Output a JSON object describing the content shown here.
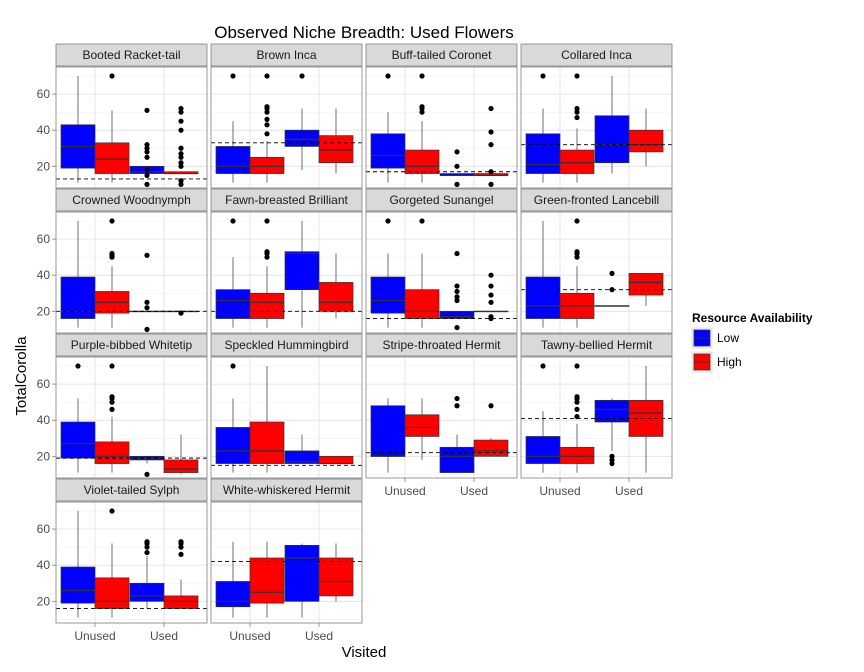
{
  "chart_data": {
    "type": "boxplot-facets",
    "title": "Observed Niche Breadth: Used Flowers",
    "xlabel": "Visited",
    "ylabel": "TotalCorolla",
    "categories": [
      "Unused",
      "Used"
    ],
    "ylim": [
      8,
      75
    ],
    "yticks": [
      20,
      40,
      60
    ],
    "grid": true,
    "legend": {
      "title": "Resource Availability",
      "position": "right",
      "entries": [
        {
          "name": "Low",
          "color": "#0000FF"
        },
        {
          "name": "High",
          "color": "#FF0000"
        }
      ]
    },
    "facets": [
      {
        "name": "Booted Racket-tail",
        "hline": 13,
        "boxes": [
          {
            "x": "Unused",
            "group": "Low",
            "min": 11,
            "q1": 19,
            "median": 31,
            "q3": 43,
            "max": 70,
            "outliers": []
          },
          {
            "x": "Unused",
            "group": "High",
            "min": 11,
            "q1": 16,
            "median": 24,
            "q3": 33,
            "max": 51,
            "outliers": [
              70
            ]
          },
          {
            "x": "Used",
            "group": "Low",
            "min": 16,
            "q1": 16,
            "median": 17,
            "q3": 20,
            "max": 20,
            "outliers": [
              10,
              15,
              18,
              25,
              28,
              30,
              32,
              51
            ]
          },
          {
            "x": "Used",
            "group": "High",
            "min": 16,
            "q1": 16,
            "median": 16,
            "q3": 17,
            "max": 17,
            "outliers": [
              10,
              12,
              20,
              22,
              25,
              27,
              30,
              40,
              45,
              50,
              52
            ]
          }
        ]
      },
      {
        "name": "Brown Inca",
        "hline": 33,
        "boxes": [
          {
            "x": "Unused",
            "group": "Low",
            "min": 11,
            "q1": 16,
            "median": 20,
            "q3": 31,
            "max": 45,
            "outliers": [
              70
            ]
          },
          {
            "x": "Unused",
            "group": "High",
            "min": 11,
            "q1": 16,
            "median": 20,
            "q3": 25,
            "max": 34,
            "outliers": [
              38,
              43,
              46,
              50,
              52,
              53,
              70
            ]
          },
          {
            "x": "Used",
            "group": "Low",
            "min": 18,
            "q1": 31,
            "median": 35,
            "q3": 40,
            "max": 52,
            "outliers": [
              70
            ]
          },
          {
            "x": "Used",
            "group": "High",
            "min": 16,
            "q1": 22,
            "median": 29,
            "q3": 37,
            "max": 52,
            "outliers": []
          }
        ]
      },
      {
        "name": "Buff-tailed Coronet",
        "hline": 17,
        "boxes": [
          {
            "x": "Unused",
            "group": "Low",
            "min": 11,
            "q1": 19,
            "median": 26,
            "q3": 38,
            "max": 50,
            "outliers": [
              70
            ]
          },
          {
            "x": "Unused",
            "group": "High",
            "min": 11,
            "q1": 16,
            "median": 20,
            "q3": 29,
            "max": 45,
            "outliers": [
              50,
              52,
              53,
              70
            ]
          },
          {
            "x": "Used",
            "group": "Low",
            "min": 15,
            "q1": 15,
            "median": 15,
            "q3": 16,
            "max": 16,
            "outliers": [
              10,
              20,
              28
            ]
          },
          {
            "x": "Used",
            "group": "High",
            "min": 15,
            "q1": 15,
            "median": 15,
            "q3": 16,
            "max": 16,
            "outliers": [
              10,
              17,
              32,
              39,
              52
            ]
          }
        ]
      },
      {
        "name": "Collared Inca",
        "hline": 32,
        "boxes": [
          {
            "x": "Unused",
            "group": "Low",
            "min": 11,
            "q1": 16,
            "median": 21,
            "q3": 38,
            "max": 52,
            "outliers": [
              70
            ]
          },
          {
            "x": "Unused",
            "group": "High",
            "min": 11,
            "q1": 16,
            "median": 22,
            "q3": 29,
            "max": 41,
            "outliers": [
              47,
              50,
              52,
              70
            ]
          },
          {
            "x": "Used",
            "group": "Low",
            "min": 16,
            "q1": 22,
            "median": 32,
            "q3": 48,
            "max": 70,
            "outliers": []
          },
          {
            "x": "Used",
            "group": "High",
            "min": 20,
            "q1": 28,
            "median": 32,
            "q3": 40,
            "max": 52,
            "outliers": []
          }
        ]
      },
      {
        "name": "Crowned Woodnymph",
        "hline": 20,
        "boxes": [
          {
            "x": "Unused",
            "group": "Low",
            "min": 11,
            "q1": 16,
            "median": 20,
            "q3": 39,
            "max": 70,
            "outliers": []
          },
          {
            "x": "Unused",
            "group": "High",
            "min": 11,
            "q1": 19,
            "median": 25,
            "q3": 31,
            "max": 45,
            "outliers": [
              50,
              51,
              52,
              70
            ]
          },
          {
            "x": "Used",
            "group": "Low",
            "min": 20,
            "q1": 20,
            "median": 20,
            "q3": 20,
            "max": 20,
            "outliers": [
              10,
              22,
              25,
              51
            ]
          },
          {
            "x": "Used",
            "group": "High",
            "min": 20,
            "q1": 20,
            "median": 20,
            "q3": 20,
            "max": 20,
            "outliers": [
              19
            ]
          }
        ]
      },
      {
        "name": "Fawn-breasted Brilliant",
        "hline": 20,
        "boxes": [
          {
            "x": "Unused",
            "group": "Low",
            "min": 11,
            "q1": 16,
            "median": 26,
            "q3": 32,
            "max": 50,
            "outliers": [
              70
            ]
          },
          {
            "x": "Unused",
            "group": "High",
            "min": 11,
            "q1": 16,
            "median": 25,
            "q3": 30,
            "max": 45,
            "outliers": [
              50,
              52,
              53,
              70
            ]
          },
          {
            "x": "Used",
            "group": "Low",
            "min": 11,
            "q1": 32,
            "median": 52,
            "q3": 53,
            "max": 70,
            "outliers": []
          },
          {
            "x": "Used",
            "group": "High",
            "min": 16,
            "q1": 20,
            "median": 25,
            "q3": 36,
            "max": 52,
            "outliers": []
          }
        ]
      },
      {
        "name": "Gorgeted Sunangel",
        "hline": 16,
        "boxes": [
          {
            "x": "Unused",
            "group": "Low",
            "min": 11,
            "q1": 19,
            "median": 26,
            "q3": 39,
            "max": 52,
            "outliers": [
              70
            ]
          },
          {
            "x": "Unused",
            "group": "High",
            "min": 11,
            "q1": 16,
            "median": 20,
            "q3": 32,
            "max": 52,
            "outliers": [
              70
            ]
          },
          {
            "x": "Used",
            "group": "Low",
            "min": 16,
            "q1": 16,
            "median": 17,
            "q3": 20,
            "max": 20,
            "outliers": [
              11,
              26,
              28,
              31,
              34,
              52
            ]
          },
          {
            "x": "Used",
            "group": "High",
            "min": 20,
            "q1": 20,
            "median": 20,
            "q3": 20,
            "max": 20,
            "outliers": [
              16,
              17,
              25,
              29,
              34,
              40
            ]
          }
        ]
      },
      {
        "name": "Green-fronted Lancebill",
        "hline": 32,
        "boxes": [
          {
            "x": "Unused",
            "group": "Low",
            "min": 11,
            "q1": 16,
            "median": 23,
            "q3": 39,
            "max": 70,
            "outliers": []
          },
          {
            "x": "Unused",
            "group": "High",
            "min": 11,
            "q1": 16,
            "median": 23,
            "q3": 30,
            "max": 45,
            "outliers": [
              50,
              52,
              53,
              70
            ]
          },
          {
            "x": "Used",
            "group": "Low",
            "min": 23,
            "q1": 23,
            "median": 23,
            "q3": 23,
            "max": 23,
            "outliers": [
              32,
              41
            ]
          },
          {
            "x": "Used",
            "group": "High",
            "min": 23,
            "q1": 29,
            "median": 36,
            "q3": 41,
            "max": 41,
            "outliers": []
          }
        ]
      },
      {
        "name": "Purple-bibbed Whitetip",
        "hline": 19,
        "boxes": [
          {
            "x": "Unused",
            "group": "Low",
            "min": 11,
            "q1": 19,
            "median": 27,
            "q3": 39,
            "max": 52,
            "outliers": [
              70
            ]
          },
          {
            "x": "Unused",
            "group": "High",
            "min": 11,
            "q1": 16,
            "median": 20,
            "q3": 28,
            "max": 42,
            "outliers": [
              46,
              50,
              52,
              53,
              70
            ]
          },
          {
            "x": "Used",
            "group": "Low",
            "min": 16,
            "q1": 18,
            "median": 19,
            "q3": 20,
            "max": 20,
            "outliers": [
              10
            ]
          },
          {
            "x": "Used",
            "group": "High",
            "min": 10,
            "q1": 11,
            "median": 13,
            "q3": 18,
            "max": 32,
            "outliers": []
          }
        ]
      },
      {
        "name": "Speckled Hummingbird",
        "hline": 15,
        "boxes": [
          {
            "x": "Unused",
            "group": "Low",
            "min": 11,
            "q1": 16,
            "median": 23,
            "q3": 36,
            "max": 52,
            "outliers": [
              70
            ]
          },
          {
            "x": "Unused",
            "group": "High",
            "min": 11,
            "q1": 16,
            "median": 23,
            "q3": 39,
            "max": 70,
            "outliers": []
          },
          {
            "x": "Used",
            "group": "Low",
            "min": 16,
            "q1": 16,
            "median": 17,
            "q3": 23,
            "max": 32,
            "outliers": []
          },
          {
            "x": "Used",
            "group": "High",
            "min": 16,
            "q1": 16,
            "median": 16,
            "q3": 20,
            "max": 20,
            "outliers": []
          }
        ]
      },
      {
        "name": "Stripe-throated Hermit",
        "hline": 22,
        "boxes": [
          {
            "x": "Unused",
            "group": "Low",
            "min": 11,
            "q1": 20,
            "median": 20,
            "q3": 48,
            "max": 52,
            "outliers": []
          },
          {
            "x": "Unused",
            "group": "High",
            "min": 18,
            "q1": 31,
            "median": 36,
            "q3": 43,
            "max": 52,
            "outliers": []
          },
          {
            "x": "Used",
            "group": "Low",
            "min": 11,
            "q1": 11,
            "median": 20,
            "q3": 25,
            "max": 32,
            "outliers": [
              48,
              52
            ]
          },
          {
            "x": "Used",
            "group": "High",
            "min": 20,
            "q1": 20,
            "median": 23,
            "q3": 29,
            "max": 30,
            "outliers": [
              48
            ]
          }
        ]
      },
      {
        "name": "Tawny-bellied Hermit",
        "hline": 41,
        "boxes": [
          {
            "x": "Unused",
            "group": "Low",
            "min": 11,
            "q1": 16,
            "median": 20,
            "q3": 31,
            "max": 45,
            "outliers": [
              70
            ]
          },
          {
            "x": "Unused",
            "group": "High",
            "min": 11,
            "q1": 16,
            "median": 20,
            "q3": 25,
            "max": 38,
            "outliers": [
              42,
              46,
              50,
              52,
              53,
              70
            ]
          },
          {
            "x": "Used",
            "group": "Low",
            "min": 23,
            "q1": 39,
            "median": 46,
            "q3": 51,
            "max": 52,
            "outliers": [
              16,
              18,
              20
            ]
          },
          {
            "x": "Used",
            "group": "High",
            "min": 11,
            "q1": 31,
            "median": 44,
            "q3": 51,
            "max": 70,
            "outliers": []
          }
        ]
      },
      {
        "name": "Violet-tailed Sylph",
        "hline": 16,
        "boxes": [
          {
            "x": "Unused",
            "group": "Low",
            "min": 11,
            "q1": 19,
            "median": 26,
            "q3": 39,
            "max": 70,
            "outliers": []
          },
          {
            "x": "Unused",
            "group": "High",
            "min": 11,
            "q1": 16,
            "median": 20,
            "q3": 33,
            "max": 52,
            "outliers": [
              70
            ]
          },
          {
            "x": "Used",
            "group": "Low",
            "min": 16,
            "q1": 20,
            "median": 23,
            "q3": 30,
            "max": 45,
            "outliers": [
              47,
              50,
              52,
              53
            ]
          },
          {
            "x": "Used",
            "group": "High",
            "min": 16,
            "q1": 16,
            "median": 20,
            "q3": 23,
            "max": 32,
            "outliers": [
              46,
              50,
              52,
              53
            ]
          }
        ]
      },
      {
        "name": "White-whiskered Hermit",
        "hline": 42,
        "boxes": [
          {
            "x": "Unused",
            "group": "Low",
            "min": 11,
            "q1": 17,
            "median": 20,
            "q3": 31,
            "max": 53,
            "outliers": []
          },
          {
            "x": "Unused",
            "group": "High",
            "min": 11,
            "q1": 19,
            "median": 25,
            "q3": 44,
            "max": 53,
            "outliers": []
          },
          {
            "x": "Used",
            "group": "Low",
            "min": 11,
            "q1": 20,
            "median": 44,
            "q3": 51,
            "max": 52,
            "outliers": []
          },
          {
            "x": "Used",
            "group": "High",
            "min": 20,
            "q1": 23,
            "median": 31,
            "q3": 44,
            "max": 52,
            "outliers": []
          }
        ]
      }
    ]
  }
}
